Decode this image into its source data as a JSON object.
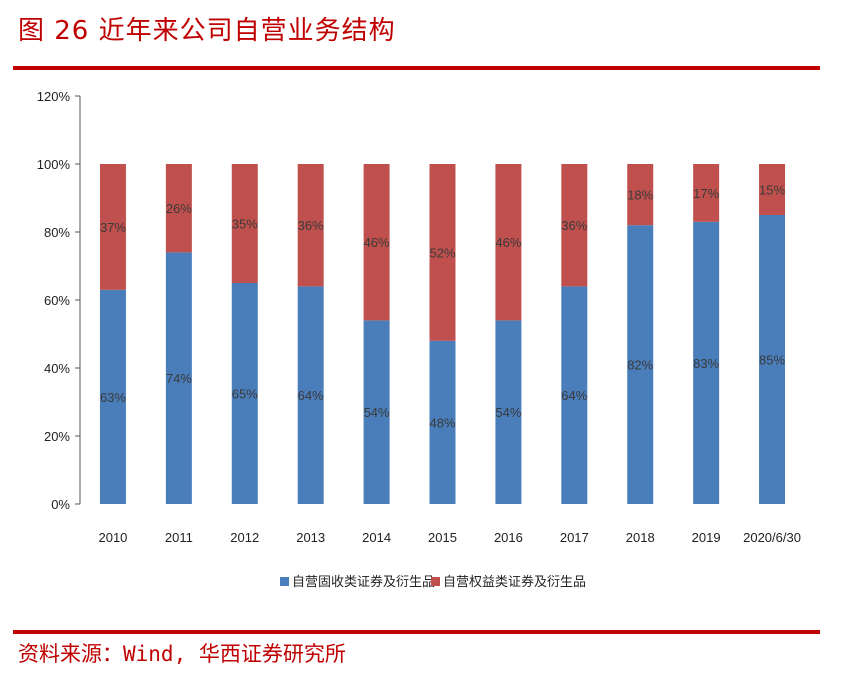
{
  "figure": {
    "title": "图 26 近年来公司自营业务结构",
    "source": "资料来源：Wind, 华西证券研究所"
  },
  "chart_data": {
    "type": "bar",
    "stacked": true,
    "categories": [
      "2010",
      "2011",
      "2012",
      "2013",
      "2014",
      "2015",
      "2016",
      "2017",
      "2018",
      "2019",
      "2020/6/30"
    ],
    "series": [
      {
        "name": "自营固收类证券及衍生品",
        "color": "#4a7ebb",
        "values": [
          63,
          74,
          65,
          64,
          54,
          48,
          54,
          64,
          82,
          83,
          85
        ]
      },
      {
        "name": "自营权益类证券及衍生品",
        "color": "#c0504d",
        "values": [
          37,
          26,
          35,
          36,
          46,
          52,
          46,
          36,
          18,
          17,
          15
        ]
      }
    ],
    "data_labels": {
      "fixed_income": [
        "63%",
        "74%",
        "65%",
        "64%",
        "54%",
        "48%",
        "54%",
        "64%",
        "82%",
        "83%",
        "85%"
      ],
      "equity": [
        "37%",
        "26%",
        "35%",
        "36%",
        "46%",
        "52%",
        "46%",
        "36%",
        "18%",
        "17%",
        "15%"
      ]
    },
    "y_ticks": [
      "0%",
      "20%",
      "40%",
      "60%",
      "80%",
      "100%",
      "120%"
    ],
    "ylim": [
      0,
      120
    ],
    "grid": false,
    "legend_position": "bottom"
  }
}
